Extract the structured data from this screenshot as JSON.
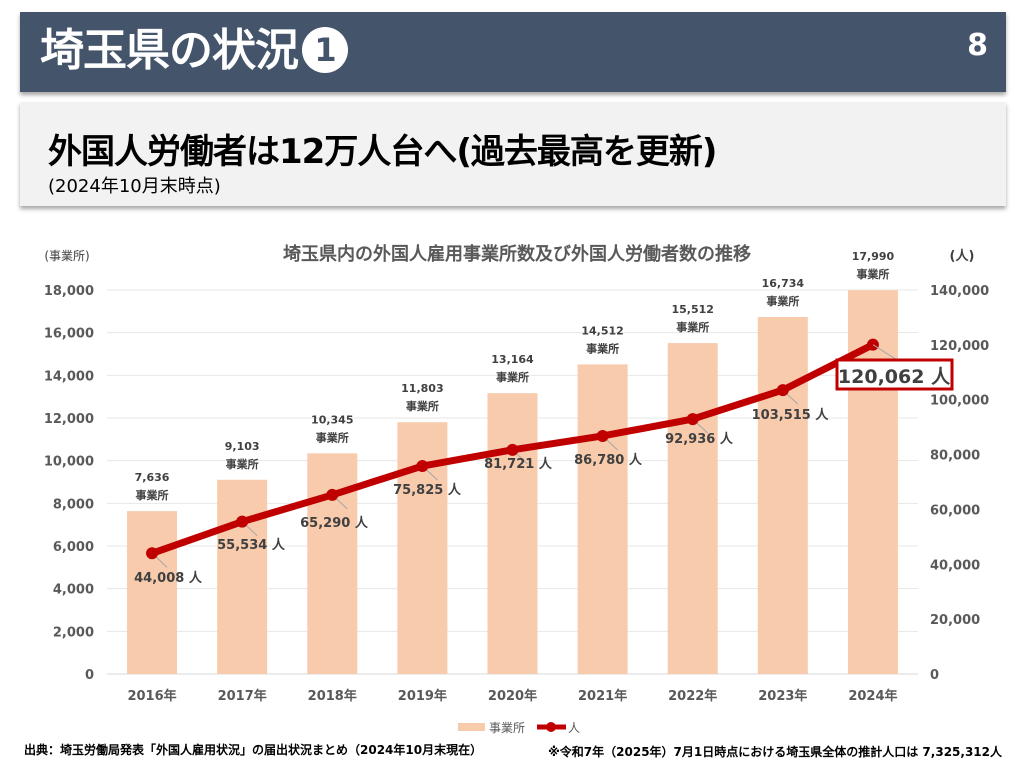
{
  "header": {
    "title": "埼玉県の状況",
    "title_number": "1",
    "page_number": "8"
  },
  "subheader": {
    "headline": "外国人労働者は12万人台へ(過去最高を更新)",
    "note": "(2024年10月末時点)"
  },
  "footer": {
    "source": "出典：埼玉労働局発表「外国人雇用状況」の届出状況まとめ（2024年10月末現在）",
    "population_note": "※令和7年（2025年）7月1日時点における埼玉県全体の推計人口は 7,325,312人"
  },
  "colors": {
    "bar": "#f8cbad",
    "line": "#c00000",
    "header_bg": "#44546a",
    "highlight_box": "#c00000"
  },
  "chart_data": {
    "type": "bar",
    "title": "埼玉県内の外国人雇用事業所数及び外国人労働者数の推移",
    "categories": [
      "2016年",
      "2017年",
      "2018年",
      "2019年",
      "2020年",
      "2021年",
      "2022年",
      "2023年",
      "2024年"
    ],
    "series": [
      {
        "name": "事業所",
        "type": "bar",
        "axis": "left",
        "values": [
          7636,
          9103,
          10345,
          11803,
          13164,
          14512,
          15512,
          16734,
          17990
        ],
        "labels": [
          "7,636",
          "9,103",
          "10,345",
          "11,803",
          "13,164",
          "14,512",
          "15,512",
          "16,734",
          "17,990"
        ],
        "label_unit": "事業所"
      },
      {
        "name": "人",
        "type": "line",
        "axis": "right",
        "values": [
          44008,
          55534,
          65290,
          75825,
          81721,
          86780,
          92936,
          103515,
          120062
        ],
        "labels": [
          "44,008 人",
          "55,534 人",
          "65,290 人",
          "75,825 人",
          "81,721 人",
          "86,780 人",
          "92,936 人",
          "103,515 人",
          "120,062 人"
        ],
        "highlight_index": 8
      }
    ],
    "y_left": {
      "label": "(事業所)",
      "range": [
        0,
        18000
      ],
      "ticks": [
        "0",
        "2,000",
        "4,000",
        "6,000",
        "8,000",
        "10,000",
        "12,000",
        "14,000",
        "16,000",
        "18,000"
      ]
    },
    "y_right": {
      "label": "(人)",
      "range": [
        0,
        140000
      ],
      "ticks": [
        "0",
        "20,000",
        "40,000",
        "60,000",
        "80,000",
        "100,000",
        "120,000",
        "140,000"
      ]
    },
    "grid": true,
    "legend": {
      "position": "bottom",
      "entries": [
        "事業所",
        "人"
      ]
    }
  }
}
